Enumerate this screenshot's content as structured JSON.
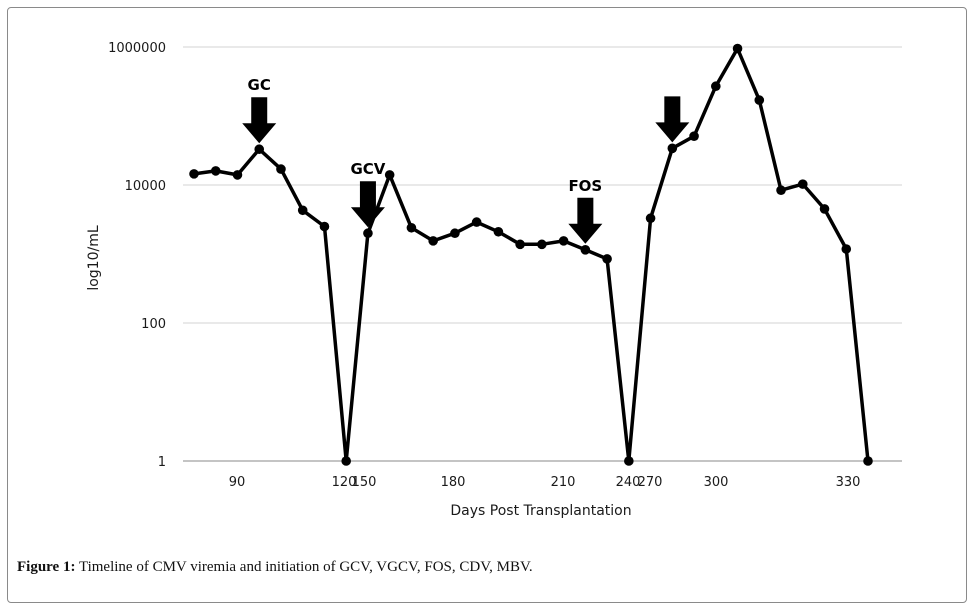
{
  "chart_data": {
    "type": "line",
    "title": "",
    "xlabel": "Days Post Transplantation",
    "ylabel": "log10/mL",
    "yscale": "log",
    "ylim": [
      1,
      1000000
    ],
    "y_ticks": [
      1,
      100,
      10000,
      1000000
    ],
    "y_tick_labels": [
      "1",
      "100",
      "10000",
      "1000000"
    ],
    "x_tick_labels": [
      "90",
      "120",
      "150",
      "180",
      "210",
      "240",
      "270",
      "300",
      "330"
    ],
    "grid": "horizontal",
    "legend": "none",
    "line_color": "#000000",
    "series": [
      {
        "values": [
          14500,
          16000,
          14000,
          33000,
          17000,
          4300,
          2500,
          1,
          2000,
          14000,
          2400,
          1550,
          2000,
          2900,
          2100,
          1380,
          1380,
          1550,
          1150,
          850,
          1,
          3300,
          34000,
          51000,
          270000,
          950000,
          170000,
          8400,
          10300,
          4500,
          1180,
          1
        ]
      }
    ],
    "annotations": [
      {
        "label": "GC",
        "index": 3
      },
      {
        "label": "GCV",
        "index": 8
      },
      {
        "label": "FOS",
        "index": 18
      },
      {
        "label": "",
        "index": 22
      }
    ]
  },
  "caption": {
    "prefix": "Figure 1:",
    "text": " Timeline of CMV viremia and initiation of GCV, VGCV, FOS, CDV, MBV."
  }
}
